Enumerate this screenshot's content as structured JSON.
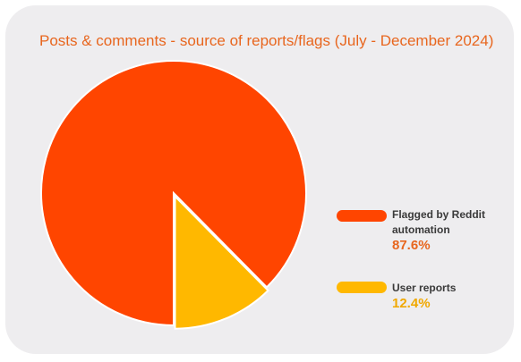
{
  "chart_data": {
    "type": "pie",
    "title": "Posts & comments - source of reports/flags  (July - December 2024)",
    "slices": [
      {
        "label": "Flagged by Reddit automation",
        "value": 87.6,
        "value_label": "87.6%",
        "color": "#ff4500"
      },
      {
        "label": "User reports",
        "value": 12.4,
        "value_label": "12.4%",
        "color": "#ffb800"
      }
    ],
    "legend_position": "right",
    "colors": {
      "legend_value": "#e8661e",
      "legend_value_2": "#f0a800",
      "background": "#eeedef"
    }
  }
}
